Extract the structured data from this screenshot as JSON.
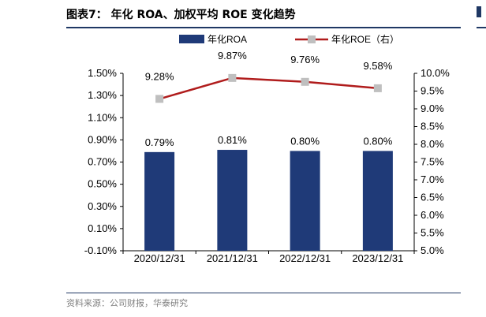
{
  "header": {
    "title": "图表7： 年化 ROA、加权平均 ROE 变化趋势"
  },
  "footer": {
    "source": "资料来源：公司财报，华泰研究"
  },
  "colors": {
    "bar": "#1f3a78",
    "line": "#b01c1c",
    "marker": "#bfbfbf",
    "rule": "#1f3864"
  },
  "chart_data": {
    "type": "bar",
    "categories": [
      "2020/12/31",
      "2021/12/31",
      "2022/12/31",
      "2023/12/31"
    ],
    "series": [
      {
        "name": "年化ROA",
        "type": "bar",
        "axis": "left",
        "values": [
          0.79,
          0.81,
          0.8,
          0.8
        ],
        "labels": [
          "0.79%",
          "0.81%",
          "0.80%",
          "0.80%"
        ]
      },
      {
        "name": "年化ROE（右）",
        "type": "line",
        "axis": "right",
        "values": [
          9.28,
          9.87,
          9.76,
          9.58
        ],
        "labels": [
          "9.28%",
          "9.87%",
          "9.76%",
          "9.58%"
        ]
      }
    ],
    "y_left": {
      "min": -0.1,
      "max": 1.5,
      "ticks": [
        "-0.10%",
        "0.10%",
        "0.30%",
        "0.50%",
        "0.70%",
        "0.90%",
        "1.10%",
        "1.30%",
        "1.50%"
      ]
    },
    "y_right": {
      "min": 5.0,
      "max": 10.0,
      "ticks": [
        "5.0%",
        "5.5%",
        "6.0%",
        "6.5%",
        "7.0%",
        "7.5%",
        "8.0%",
        "8.5%",
        "9.0%",
        "9.5%",
        "10.0%"
      ]
    },
    "legend_position": "top",
    "grid": false
  }
}
